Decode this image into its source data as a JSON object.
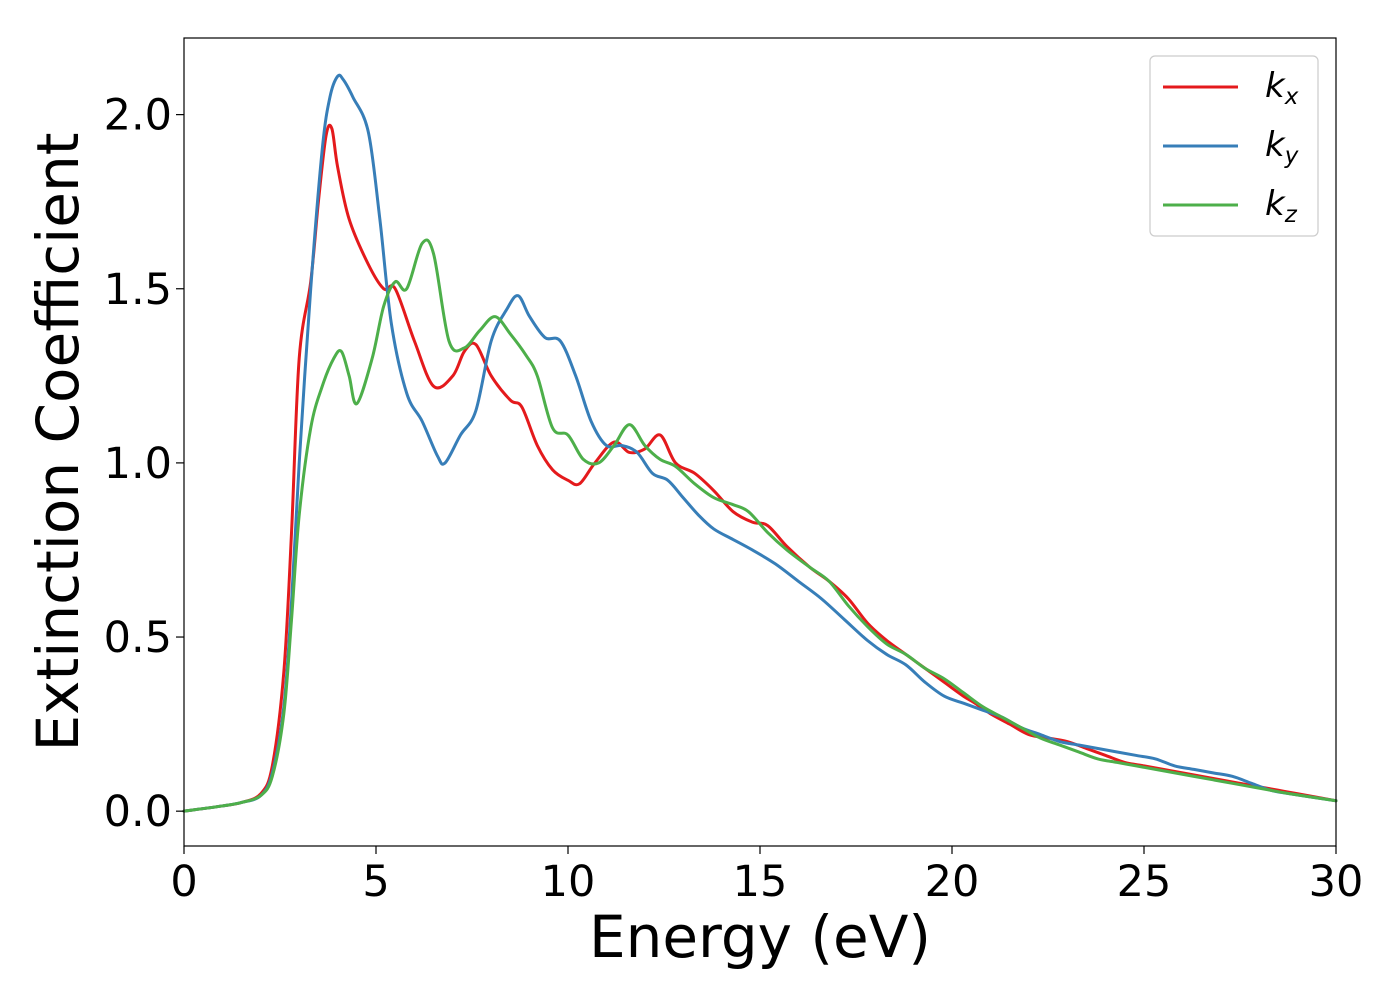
{
  "chart_data": {
    "type": "line",
    "title": "",
    "xlabel": "Energy (eV)",
    "ylabel": "Extinction Coefficient",
    "xlim": [
      0,
      30
    ],
    "ylim": [
      -0.1,
      2.22
    ],
    "xticks": [
      0,
      5,
      10,
      15,
      20,
      25,
      30
    ],
    "xtick_labels": [
      "0",
      "5",
      "10",
      "15",
      "20",
      "25",
      "30"
    ],
    "yticks": [
      0.0,
      0.5,
      1.0,
      1.5,
      2.0
    ],
    "ytick_labels": [
      "0.0",
      "0.5",
      "1.0",
      "1.5",
      "2.0"
    ],
    "grid": false,
    "legend_position": "top-right",
    "series": [
      {
        "name": "k",
        "subscript": "x",
        "color": "#e41a1c",
        "x": [
          0,
          1,
          1.5,
          2,
          2.3,
          2.6,
          2.8,
          3,
          3.3,
          3.5,
          3.7,
          3.85,
          4,
          4.3,
          4.8,
          5.2,
          5.5,
          6,
          6.5,
          7,
          7.3,
          7.6,
          8,
          8.5,
          8.8,
          9.2,
          9.6,
          10,
          10.3,
          10.7,
          11.2,
          11.6,
          12,
          12.4,
          12.8,
          13.3,
          13.8,
          14.3,
          14.8,
          15.2,
          15.7,
          16.3,
          16.8,
          17.3,
          17.8,
          18.3,
          18.8,
          19.3,
          19.8,
          20.3,
          20.6,
          21,
          21.5,
          22,
          22.5,
          23,
          23.5,
          24,
          24.5,
          25,
          25.5,
          26,
          26.5,
          27,
          27.5,
          28,
          28.5,
          29,
          30
        ],
        "y": [
          0.0,
          0.015,
          0.025,
          0.05,
          0.13,
          0.4,
          0.8,
          1.3,
          1.52,
          1.75,
          1.94,
          1.96,
          1.85,
          1.7,
          1.57,
          1.5,
          1.5,
          1.35,
          1.22,
          1.25,
          1.32,
          1.34,
          1.25,
          1.18,
          1.16,
          1.05,
          0.98,
          0.95,
          0.94,
          1.0,
          1.06,
          1.03,
          1.04,
          1.08,
          1.0,
          0.97,
          0.92,
          0.86,
          0.83,
          0.82,
          0.76,
          0.7,
          0.66,
          0.61,
          0.54,
          0.49,
          0.45,
          0.41,
          0.37,
          0.33,
          0.31,
          0.28,
          0.25,
          0.22,
          0.21,
          0.2,
          0.18,
          0.16,
          0.14,
          0.13,
          0.12,
          0.11,
          0.1,
          0.09,
          0.08,
          0.07,
          0.06,
          0.05,
          0.03
        ]
      },
      {
        "name": "k",
        "subscript": "y",
        "color": "#377eb8",
        "x": [
          0,
          1,
          1.5,
          2,
          2.3,
          2.6,
          2.8,
          3,
          3.3,
          3.6,
          3.8,
          4,
          4.15,
          4.4,
          4.8,
          5.1,
          5.4,
          5.8,
          6.2,
          6.6,
          6.8,
          7.2,
          7.6,
          8,
          8.4,
          8.7,
          9,
          9.4,
          9.8,
          10.2,
          10.6,
          11,
          11.4,
          11.8,
          12.2,
          12.6,
          13,
          13.4,
          13.8,
          14.3,
          14.8,
          15.4,
          16,
          16.6,
          17.2,
          17.8,
          18.3,
          18.8,
          19.3,
          19.8,
          20.3,
          20.8,
          21.3,
          21.8,
          22.3,
          22.8,
          23.3,
          23.8,
          24.3,
          24.8,
          25.3,
          25.8,
          26.3,
          26.8,
          27.3,
          27.8,
          28.3,
          28.8,
          30
        ],
        "y": [
          0.0,
          0.015,
          0.025,
          0.045,
          0.11,
          0.3,
          0.6,
          1.0,
          1.5,
          1.9,
          2.05,
          2.11,
          2.1,
          2.05,
          1.95,
          1.7,
          1.4,
          1.2,
          1.12,
          1.02,
          1.0,
          1.08,
          1.15,
          1.35,
          1.44,
          1.48,
          1.42,
          1.36,
          1.35,
          1.25,
          1.12,
          1.05,
          1.05,
          1.03,
          0.97,
          0.95,
          0.9,
          0.85,
          0.81,
          0.78,
          0.75,
          0.71,
          0.66,
          0.61,
          0.55,
          0.49,
          0.45,
          0.42,
          0.37,
          0.33,
          0.31,
          0.29,
          0.27,
          0.24,
          0.22,
          0.2,
          0.19,
          0.18,
          0.17,
          0.16,
          0.15,
          0.13,
          0.12,
          0.11,
          0.1,
          0.08,
          0.06,
          0.05,
          0.03
        ]
      },
      {
        "name": "k",
        "subscript": "z",
        "color": "#4daf4a",
        "x": [
          0,
          1,
          1.5,
          2,
          2.3,
          2.6,
          2.8,
          3,
          3.3,
          3.6,
          3.9,
          4.1,
          4.3,
          4.5,
          4.9,
          5.2,
          5.5,
          5.8,
          6.2,
          6.5,
          6.9,
          7.3,
          7.7,
          8.1,
          8.5,
          8.9,
          9.2,
          9.6,
          10,
          10.4,
          10.8,
          11.2,
          11.6,
          12,
          12.4,
          12.8,
          13.3,
          13.8,
          14.3,
          14.7,
          15.2,
          15.7,
          16.3,
          16.8,
          17.3,
          17.8,
          18.3,
          18.8,
          19.3,
          19.8,
          20.3,
          20.8,
          21.3,
          21.8,
          22.3,
          22.8,
          23.3,
          23.8,
          24.3,
          24.8,
          25.3,
          25.8,
          26.3,
          26.8,
          27.3,
          27.8,
          28.3,
          28.8,
          30
        ],
        "y": [
          0.0,
          0.015,
          0.025,
          0.045,
          0.1,
          0.28,
          0.55,
          0.85,
          1.1,
          1.22,
          1.3,
          1.32,
          1.25,
          1.17,
          1.3,
          1.45,
          1.52,
          1.5,
          1.63,
          1.6,
          1.35,
          1.33,
          1.38,
          1.42,
          1.37,
          1.31,
          1.25,
          1.1,
          1.08,
          1.01,
          1.0,
          1.05,
          1.11,
          1.05,
          1.01,
          0.99,
          0.94,
          0.9,
          0.88,
          0.86,
          0.8,
          0.75,
          0.7,
          0.66,
          0.59,
          0.53,
          0.48,
          0.45,
          0.41,
          0.38,
          0.34,
          0.3,
          0.27,
          0.24,
          0.21,
          0.19,
          0.17,
          0.15,
          0.14,
          0.13,
          0.12,
          0.11,
          0.1,
          0.09,
          0.08,
          0.07,
          0.06,
          0.05,
          0.03
        ]
      }
    ]
  }
}
